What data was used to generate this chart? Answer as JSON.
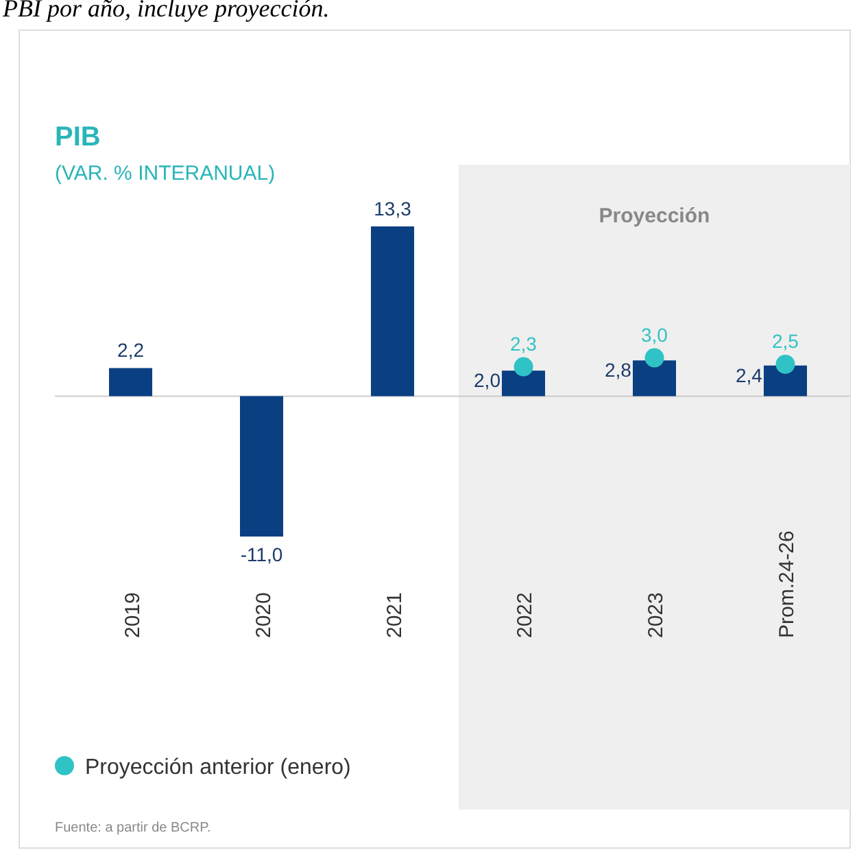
{
  "chart_data": {
    "type": "bar",
    "title": "PIB",
    "subtitle": "(VAR. % INTERANUAL)",
    "categories": [
      "2019",
      "2020",
      "2021",
      "2022",
      "2023",
      "Prom.24-26"
    ],
    "series": [
      {
        "color": "#0a3f82",
        "values": [
          2.2,
          -11.0,
          13.3,
          2.0,
          2.8,
          2.4
        ],
        "value_labels": [
          "2,2",
          "-11,0",
          "13,3",
          "2,0",
          "2,8",
          "2,4"
        ]
      },
      {
        "type": "scatter",
        "name": "Proyección anterior (enero)",
        "color": "#2fc3c6",
        "values": [
          null,
          null,
          null,
          2.3,
          3.0,
          2.5
        ],
        "value_labels": [
          null,
          null,
          null,
          "2,3",
          "3,0",
          "2,5"
        ]
      }
    ],
    "bands": [
      {
        "axis": "x",
        "from": "2022",
        "to": "Prom.24-26",
        "label": "Proyección",
        "color": "#efefef"
      }
    ],
    "legend": "bottom left",
    "marker": "circle",
    "grid": false,
    "annotations": [
      "PBI por año, incluye proyección.",
      "Fuente: a partir de BCRP."
    ]
  }
}
